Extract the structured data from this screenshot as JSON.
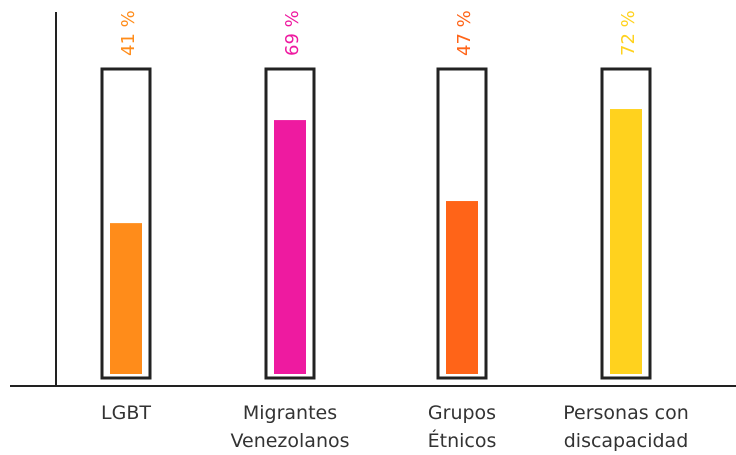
{
  "chart_data": {
    "type": "bar",
    "title": "",
    "xlabel": "",
    "ylabel": "",
    "ylim": [
      0,
      100
    ],
    "grid": false,
    "categories": [
      [
        "LGBT"
      ],
      [
        "Migrantes",
        "Venezolanos"
      ],
      [
        "Grupos",
        "Étnicos"
      ],
      [
        "Personas con",
        "discapacidad"
      ]
    ],
    "values": [
      41,
      69,
      47,
      72
    ],
    "value_labels": [
      "41 %",
      "69 %",
      "47 %",
      "72 %"
    ],
    "colors": [
      "#FF8C1A",
      "#EE1AA0",
      "#FF6418",
      "#FFD21E"
    ],
    "frame_color": "#222222",
    "axis_color": "#222222"
  }
}
